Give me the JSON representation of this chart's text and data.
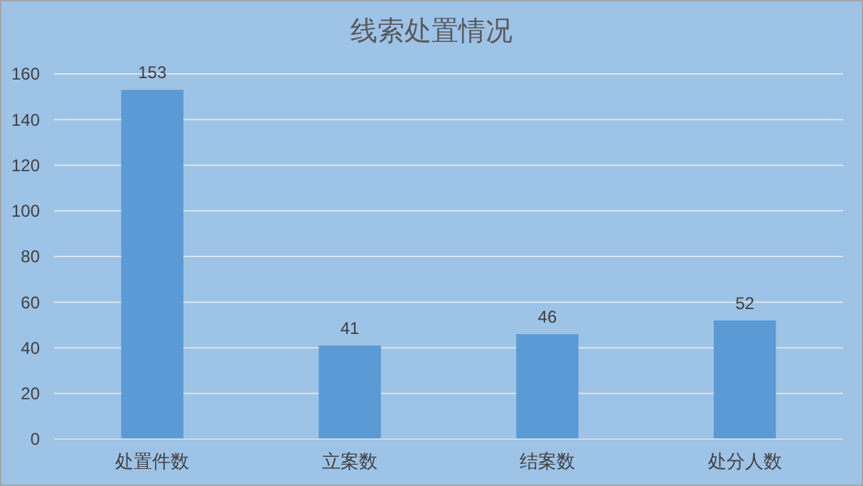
{
  "chart_data": {
    "type": "bar",
    "title": "线索处置情况",
    "categories": [
      "处置件数",
      "立案数",
      "结案数",
      "处分人数"
    ],
    "values": [
      153,
      41,
      46,
      52
    ],
    "color": "#5b9bd5",
    "ylim": [
      0,
      160
    ],
    "yticks": [
      0,
      20,
      40,
      60,
      80,
      100,
      120,
      140,
      160
    ],
    "grid": "y",
    "data_labels": true
  }
}
